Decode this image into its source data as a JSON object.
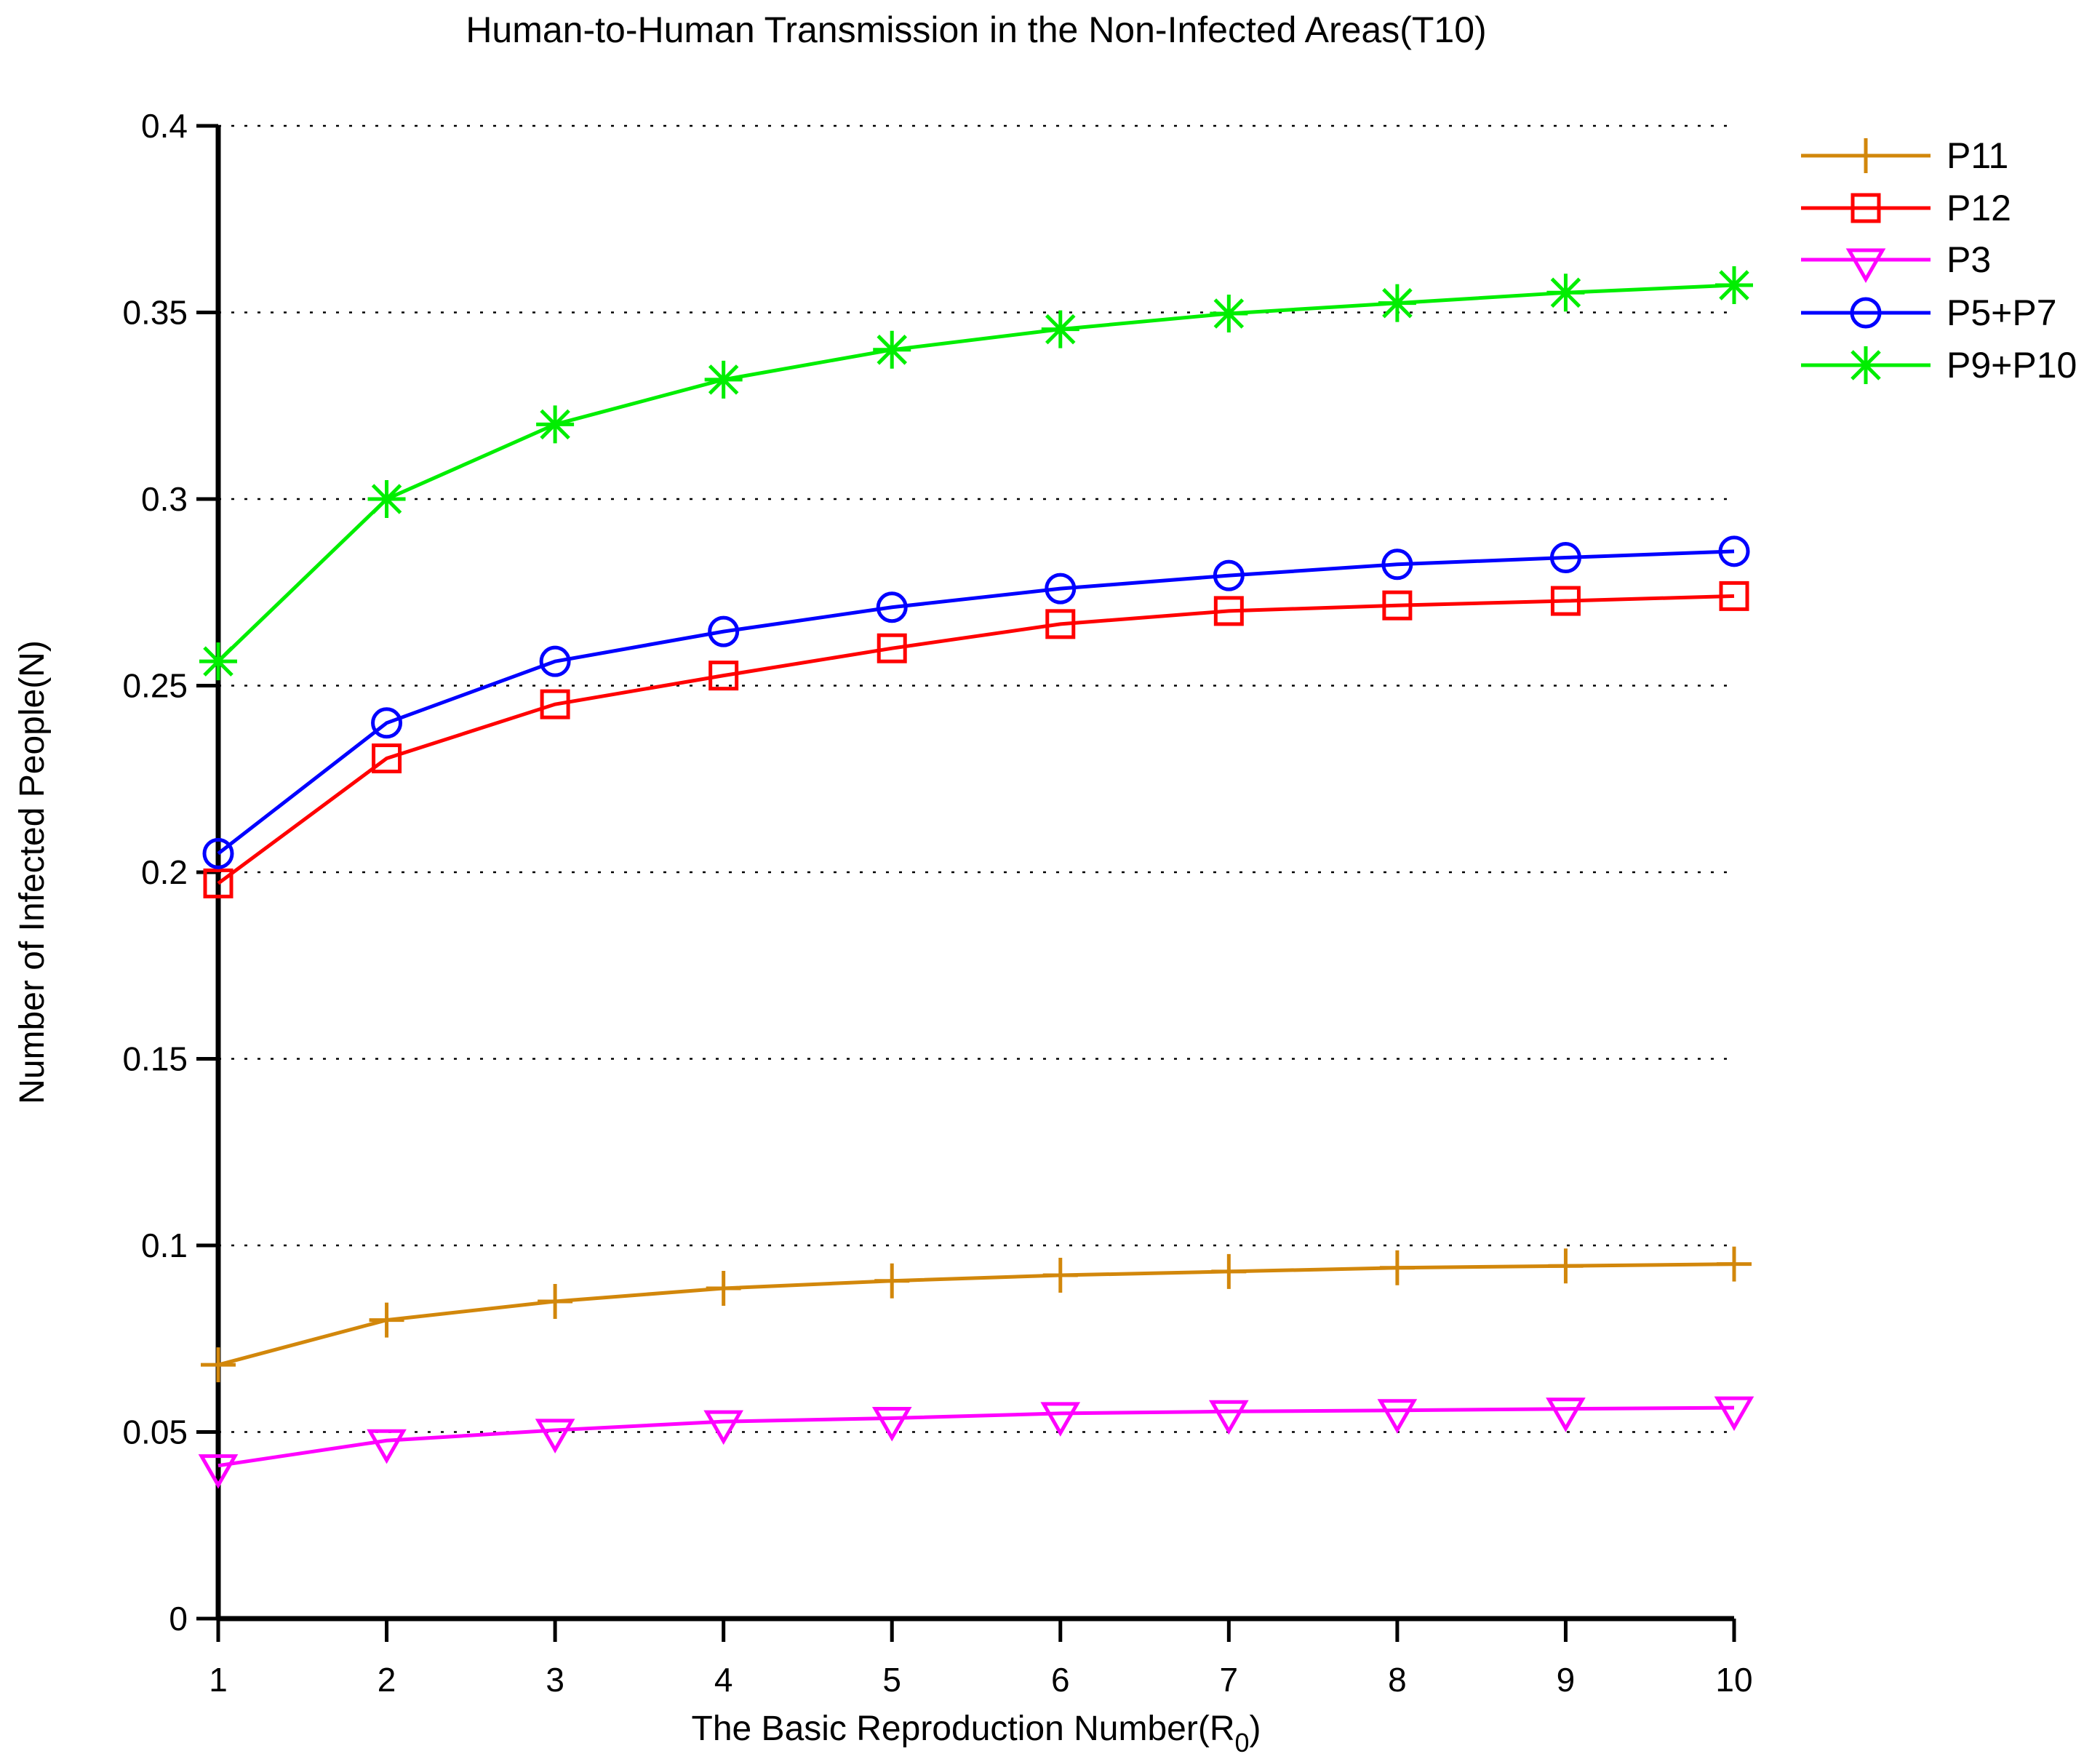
{
  "chart_data": {
    "type": "line",
    "title": "Human-to-Human Transmission in the Non-Infected Areas(T10)",
    "xlabel_prefix": "The Basic Reproduction Number(R",
    "xlabel_sub": "0",
    "xlabel_suffix": ")",
    "ylabel": "Number of Infected People(N)",
    "x": [
      1,
      2,
      3,
      4,
      5,
      6,
      7,
      8,
      9,
      10
    ],
    "xlim": [
      1,
      10
    ],
    "ylim": [
      0,
      0.4
    ],
    "xtick_labels": [
      "1",
      "2",
      "3",
      "4",
      "5",
      "6",
      "7",
      "8",
      "9",
      "10"
    ],
    "ytick_values": [
      0,
      0.05,
      0.1,
      0.15,
      0.2,
      0.25,
      0.3,
      0.35,
      0.4
    ],
    "ytick_labels": [
      "0",
      "0.05",
      "0.1",
      "0.15",
      "0.2",
      "0.25",
      "0.3",
      "0.35",
      "0.4"
    ],
    "grid": "horizontal-dotted",
    "grid_color": "#000000",
    "axis_color": "#000000",
    "legend_position": "outside-right-top",
    "series": [
      {
        "name": "P11",
        "color": "#D2870B",
        "marker": "plus",
        "values": [
          0.068,
          0.08,
          0.085,
          0.0885,
          0.0905,
          0.092,
          0.093,
          0.094,
          0.0945,
          0.095
        ]
      },
      {
        "name": "P12",
        "color": "#FF0000",
        "marker": "square",
        "values": [
          0.197,
          0.2305,
          0.245,
          0.2527,
          0.26,
          0.2665,
          0.27,
          0.2715,
          0.2727,
          0.274
        ]
      },
      {
        "name": "P3",
        "color": "#FF00FF",
        "marker": "triangle-down",
        "values": [
          0.041,
          0.0477,
          0.0505,
          0.0528,
          0.0537,
          0.055,
          0.0555,
          0.0558,
          0.0562,
          0.0565
        ]
      },
      {
        "name": "P5+P7",
        "color": "#0000FF",
        "marker": "circle",
        "values": [
          0.205,
          0.24,
          0.2565,
          0.2645,
          0.271,
          0.276,
          0.2795,
          0.2825,
          0.2843,
          0.286
        ]
      },
      {
        "name": "P9+P10",
        "color": "#00EE00",
        "marker": "asterisk",
        "values": [
          0.2565,
          0.3,
          0.32,
          0.332,
          0.34,
          0.3455,
          0.3497,
          0.3525,
          0.3553,
          0.3573
        ]
      }
    ]
  }
}
